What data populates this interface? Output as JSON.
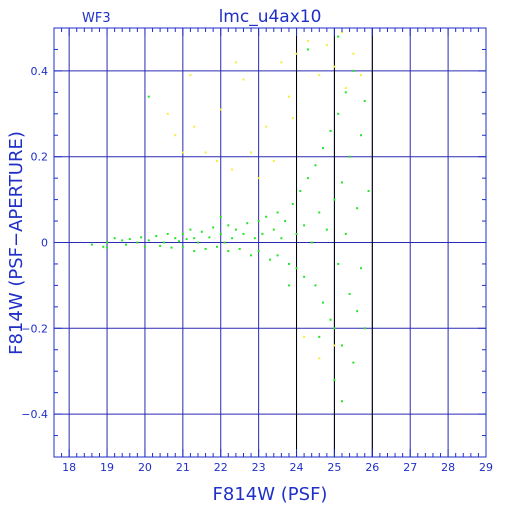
{
  "chart_data": {
    "type": "scatter",
    "title": "lmc_u4ax10",
    "corner_label": "WF3",
    "xlabel": "F814W (PSF)",
    "ylabel": "F814W (PSF−APERTURE)",
    "xlim": [
      17.6,
      29.0
    ],
    "ylim": [
      -0.5,
      0.5
    ],
    "x_ticks": [
      18,
      19,
      20,
      21,
      22,
      23,
      24,
      25,
      26,
      27,
      28,
      29
    ],
    "y_ticks": [
      -0.4,
      -0.2,
      0,
      0.2,
      0.4
    ],
    "y_tick_labels": [
      "−0.4",
      "−0.2",
      "0",
      "0.2",
      "0.4"
    ],
    "grid": true,
    "vertical_markers": [
      24.0,
      25.0,
      26.0
    ],
    "colors": {
      "axis": "#1f2fc8",
      "grid": "#2a2ab4",
      "marker_line": "#000000",
      "selected": "#22e622",
      "rejected": "#f2ee3a"
    },
    "series": [
      {
        "role": "selected",
        "color": "#22e622",
        "points": [
          [
            18.6,
            -0.005
          ],
          [
            18.9,
            -0.01
          ],
          [
            19.0,
            0.0
          ],
          [
            19.0,
            -0.012
          ],
          [
            19.2,
            0.01
          ],
          [
            19.4,
            0.005
          ],
          [
            19.5,
            -0.005
          ],
          [
            19.6,
            0.008
          ],
          [
            19.8,
            0.0
          ],
          [
            19.9,
            0.012
          ],
          [
            20.0,
            -0.01
          ],
          [
            20.1,
            0.005
          ],
          [
            20.3,
            0.015
          ],
          [
            20.4,
            -0.008
          ],
          [
            20.5,
            0.0
          ],
          [
            20.6,
            0.02
          ],
          [
            20.7,
            -0.012
          ],
          [
            20.8,
            0.01
          ],
          [
            20.9,
            0.003
          ],
          [
            21.0,
            0.02
          ],
          [
            21.0,
            -0.01
          ],
          [
            21.1,
            0.008
          ],
          [
            21.2,
            0.03
          ],
          [
            21.3,
            -0.02
          ],
          [
            21.3,
            0.01
          ],
          [
            21.4,
            0.0
          ],
          [
            21.5,
            0.025
          ],
          [
            21.6,
            -0.015
          ],
          [
            21.7,
            0.012
          ],
          [
            21.8,
            0.035
          ],
          [
            21.9,
            -0.01
          ],
          [
            22.0,
            0.02
          ],
          [
            22.1,
            0.0
          ],
          [
            22.2,
            0.04
          ],
          [
            22.2,
            -0.02
          ],
          [
            22.3,
            0.01
          ],
          [
            22.4,
            0.03
          ],
          [
            22.5,
            -0.015
          ],
          [
            22.6,
            0.02
          ],
          [
            22.7,
            0.045
          ],
          [
            22.8,
            -0.03
          ],
          [
            22.9,
            0.01
          ],
          [
            23.0,
            0.05
          ],
          [
            23.0,
            -0.02
          ],
          [
            23.1,
            0.02
          ],
          [
            23.2,
            0.06
          ],
          [
            23.3,
            -0.04
          ],
          [
            23.4,
            0.03
          ],
          [
            23.5,
            0.07
          ],
          [
            23.5,
            -0.03
          ],
          [
            23.6,
            0.01
          ],
          [
            23.7,
            0.05
          ],
          [
            23.8,
            -0.05
          ],
          [
            23.9,
            0.09
          ],
          [
            24.0,
            0.02
          ],
          [
            24.0,
            -0.06
          ],
          [
            24.1,
            0.12
          ],
          [
            24.2,
            0.04
          ],
          [
            24.2,
            -0.08
          ],
          [
            24.3,
            0.15
          ],
          [
            24.4,
            0.0
          ],
          [
            24.5,
            -0.1
          ],
          [
            24.5,
            0.18
          ],
          [
            24.6,
            0.07
          ],
          [
            24.7,
            -0.14
          ],
          [
            24.7,
            0.22
          ],
          [
            24.8,
            0.03
          ],
          [
            24.9,
            -0.18
          ],
          [
            24.9,
            0.26
          ],
          [
            25.0,
            0.1
          ],
          [
            25.0,
            -0.2
          ],
          [
            25.1,
            0.3
          ],
          [
            25.1,
            -0.05
          ],
          [
            25.2,
            0.14
          ],
          [
            25.2,
            -0.24
          ],
          [
            25.3,
            0.35
          ],
          [
            25.3,
            0.02
          ],
          [
            25.4,
            -0.12
          ],
          [
            25.4,
            0.2
          ],
          [
            25.5,
            -0.28
          ],
          [
            25.5,
            0.4
          ],
          [
            25.6,
            0.08
          ],
          [
            25.6,
            -0.16
          ],
          [
            25.7,
            0.25
          ],
          [
            25.7,
            -0.06
          ],
          [
            25.8,
            0.33
          ],
          [
            25.8,
            -0.2
          ],
          [
            25.9,
            0.12
          ],
          [
            20.1,
            0.34
          ],
          [
            22.0,
            0.06
          ],
          [
            23.8,
            -0.1
          ],
          [
            24.6,
            -0.22
          ],
          [
            25.0,
            -0.32
          ],
          [
            25.2,
            -0.37
          ],
          [
            24.3,
            0.45
          ],
          [
            25.1,
            0.48
          ]
        ]
      },
      {
        "role": "rejected",
        "color": "#f2ee3a",
        "points": [
          [
            20.6,
            0.3
          ],
          [
            20.8,
            0.25
          ],
          [
            21.0,
            0.21
          ],
          [
            21.3,
            0.27
          ],
          [
            21.6,
            0.21
          ],
          [
            21.9,
            0.19
          ],
          [
            22.0,
            0.31
          ],
          [
            22.3,
            0.17
          ],
          [
            22.6,
            0.38
          ],
          [
            22.8,
            0.21
          ],
          [
            23.0,
            0.15
          ],
          [
            23.2,
            0.27
          ],
          [
            23.4,
            0.19
          ],
          [
            23.6,
            0.42
          ],
          [
            23.8,
            0.34
          ],
          [
            24.0,
            0.44
          ],
          [
            24.3,
            0.47
          ],
          [
            24.6,
            0.39
          ],
          [
            24.8,
            0.46
          ],
          [
            25.0,
            0.41
          ],
          [
            25.2,
            0.49
          ],
          [
            25.3,
            0.36
          ],
          [
            25.5,
            0.44
          ],
          [
            25.7,
            0.39
          ],
          [
            24.2,
            -0.22
          ],
          [
            24.6,
            -0.27
          ],
          [
            25.0,
            -0.24
          ],
          [
            23.9,
            0.29
          ],
          [
            22.4,
            0.42
          ],
          [
            21.2,
            0.39
          ]
        ]
      }
    ]
  }
}
